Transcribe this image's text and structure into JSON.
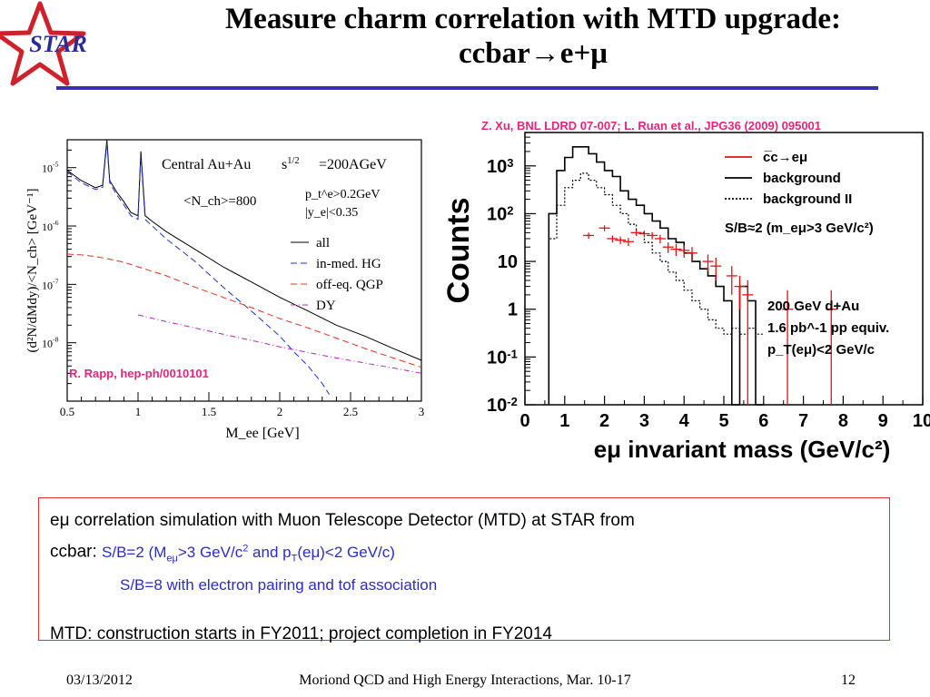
{
  "slide": {
    "title_line1": "Measure charm correlation with MTD upgrade:",
    "title_line2": "ccbar→e+μ",
    "logo_text": "STAR",
    "colors": {
      "title_rule": "#3333a8",
      "logo_star": "#d0202a",
      "logo_text": "#2a2a9a",
      "citation": "#e8247c",
      "box_border": "#e03030",
      "blue_text": "#2b2bd0"
    }
  },
  "body": {
    "line1": "eμ correlation simulation with Muon Telescope Detector (MTD) at STAR from",
    "line2_prefix": "ccbar:",
    "line2_blue_a": "S/B=2 (M",
    "line2_blue_sub_a": "eμ",
    "line2_blue_b": ">3 GeV/c",
    "line2_blue_sup": "2",
    "line2_blue_c": " and p",
    "line2_blue_sub_b": "T",
    "line2_blue_d": "(eμ)<2 GeV/c)",
    "line3": "S/B=8 with electron pairing and tof association",
    "line4": "MTD: construction starts in FY2011; project completion in FY2014"
  },
  "footer": {
    "date": "03/13/2012",
    "center": "Moriond QCD and High Energy Interactions, Mar. 10-17",
    "page": "12"
  },
  "chart_data": [
    {
      "type": "line",
      "title": "Central Au+Au",
      "annotations": [
        "s^1/2=200AGeV",
        "<N_ch>=800",
        "p_t^e>0.2GeV",
        "|y_e|<0.35",
        "R. Rapp, hep-ph/0010101"
      ],
      "xlabel": "M_ee [GeV]",
      "ylabel": "(d²N/dMdy)/<N_ch> [GeV⁻¹]",
      "xlim": [
        0.5,
        3
      ],
      "ylim": [
        1e-09,
        3e-05
      ],
      "yscale": "log",
      "x_ticks": [
        "0.5",
        "1",
        "1.5",
        "2",
        "2.5",
        "3"
      ],
      "y_ticks": [
        "10^-5",
        "10^-6",
        "10^-7",
        "10^-8"
      ],
      "legend_position": "right",
      "series": [
        {
          "name": "all",
          "color": "#000000",
          "style": "solid",
          "x": [
            0.5,
            0.6,
            0.7,
            0.75,
            0.78,
            0.8,
            0.85,
            0.9,
            0.95,
            1.0,
            1.02,
            1.05,
            1.1,
            1.2,
            1.4,
            1.6,
            1.8,
            2.0,
            2.2,
            2.4,
            2.6,
            2.8,
            3.0
          ],
          "y": [
            9e-06,
            6e-06,
            4.5e-06,
            5e-06,
            3e-05,
            6e-06,
            3.8e-06,
            2.6e-06,
            1.7e-06,
            1.5e-06,
            1.9e-05,
            1.5e-06,
            1.2e-06,
            8e-07,
            4e-07,
            2e-07,
            1.1e-07,
            6e-08,
            3.5e-08,
            2e-08,
            1.3e-08,
            8e-09,
            5e-09
          ]
        },
        {
          "name": "in-med. HG",
          "color": "#2030d0",
          "style": "dashed",
          "x": [
            0.5,
            0.6,
            0.7,
            0.75,
            0.78,
            0.8,
            0.85,
            0.9,
            0.95,
            1.0,
            1.02,
            1.05,
            1.1,
            1.2,
            1.4,
            1.6,
            1.8,
            2.0,
            2.1,
            2.2,
            2.3,
            2.35
          ],
          "y": [
            8.5e-06,
            5.5e-06,
            4.2e-06,
            4.6e-06,
            2.6e-05,
            5.5e-06,
            3.4e-06,
            2.3e-06,
            1.5e-06,
            1.3e-06,
            1.6e-05,
            1.3e-06,
            1e-06,
            6e-07,
            2.5e-07,
            9e-08,
            3.5e-08,
            1.3e-08,
            7e-09,
            4e-09,
            2e-09,
            1.3e-09
          ]
        },
        {
          "name": "off-eq. QGP",
          "color": "#e83020",
          "style": "dashed",
          "x": [
            0.5,
            0.6,
            0.7,
            0.8,
            0.9,
            1.0,
            1.2,
            1.4,
            1.6,
            1.8,
            2.0,
            2.2,
            2.4,
            2.6,
            2.8,
            3.0
          ],
          "y": [
            3.3e-07,
            3.2e-07,
            3e-07,
            2.7e-07,
            2.4e-07,
            2e-07,
            1.4e-07,
            9e-08,
            6e-08,
            4e-08,
            2.6e-08,
            1.8e-08,
            1.2e-08,
            8e-09,
            5.5e-09,
            3.8e-09
          ]
        },
        {
          "name": "DY",
          "color": "#c020c0",
          "style": "dashdot",
          "x": [
            1.0,
            1.2,
            1.4,
            1.6,
            1.8,
            2.0,
            2.2,
            2.4,
            2.6,
            2.8,
            3.0
          ],
          "y": [
            3e-08,
            2.3e-08,
            1.8e-08,
            1.4e-08,
            1.1e-08,
            8.5e-09,
            6.8e-09,
            5.5e-09,
            4.5e-09,
            3.7e-09,
            3e-09
          ]
        }
      ]
    },
    {
      "type": "line",
      "title": "",
      "citation": "Z. Xu, BNL LDRD 07-007; L. Ruan et al., JPG36 (2009) 095001",
      "xlabel": "eμ invariant mass (GeV/c²)",
      "ylabel": "Counts",
      "xlim": [
        0,
        10
      ],
      "ylim": [
        0.01,
        5000
      ],
      "yscale": "log",
      "x_ticks": [
        "0",
        "1",
        "2",
        "3",
        "4",
        "5",
        "6",
        "7",
        "8",
        "9",
        "10"
      ],
      "y_ticks": [
        "10^3",
        "10^2",
        "10",
        "1",
        "10^-1",
        "10^-2"
      ],
      "legend_position": "top-right",
      "annotations": [
        "S/B≈2 (m_eμ>3 GeV/c²)",
        "200 GeV d+Au",
        "1.6 pb^-1 pp equiv.",
        "p_T(eμ)<2 GeV/c"
      ],
      "histograms": [
        {
          "name": "background",
          "color": "#000000",
          "style": "solid",
          "bin_edges": [
            0.6,
            0.8,
            1.0,
            1.2,
            1.4,
            1.6,
            1.8,
            2.0,
            2.2,
            2.4,
            2.6,
            2.8,
            3.0,
            3.2,
            3.4,
            3.6,
            3.8,
            4.0,
            4.2,
            4.4,
            4.6,
            4.8,
            5.0,
            5.2,
            5.4,
            5.6,
            5.8,
            6.0
          ],
          "counts": [
            100,
            800,
            1500,
            2500,
            2500,
            1800,
            1200,
            800,
            600,
            300,
            200,
            150,
            100,
            70,
            50,
            30,
            25,
            15,
            10,
            7,
            5,
            3,
            1.5,
            0.01,
            3,
            1.5,
            0.01
          ]
        },
        {
          "name": "background II",
          "color": "#000000",
          "style": "dotted",
          "bin_edges": [
            0.6,
            0.8,
            1.0,
            1.2,
            1.4,
            1.6,
            1.8,
            2.0,
            2.2,
            2.4,
            2.6,
            2.8,
            3.0,
            3.2,
            3.4,
            3.6,
            3.8,
            4.0,
            4.2,
            4.4,
            4.6,
            4.8,
            5.0,
            5.2,
            5.4,
            5.6,
            5.8,
            6.0
          ],
          "counts": [
            30,
            150,
            350,
            500,
            700,
            500,
            350,
            250,
            150,
            100,
            60,
            40,
            25,
            15,
            10,
            6,
            4,
            2.5,
            1.5,
            1,
            0.6,
            0.4,
            0.3,
            0.4,
            0.3,
            0.4,
            0.3
          ]
        }
      ],
      "series": [
        {
          "name": "c̅c→eμ",
          "color": "#e81010",
          "style": "points-with-errors",
          "x": [
            1.6,
            2.0,
            2.2,
            2.4,
            2.6,
            2.8,
            3.0,
            3.2,
            3.4,
            3.6,
            3.8,
            4.0,
            4.2,
            4.6,
            4.8,
            5.2,
            5.4,
            5.6,
            6.6,
            7.7
          ],
          "y": [
            35,
            50,
            30,
            28,
            26,
            40,
            38,
            35,
            30,
            20,
            18,
            17,
            15,
            10,
            8,
            5,
            3,
            2,
            1,
            1
          ],
          "yerr": [
            5,
            7,
            5,
            5,
            5,
            6,
            6,
            6,
            6,
            5,
            5,
            5,
            5,
            4,
            4,
            3,
            2,
            2,
            1.5,
            1.5
          ]
        }
      ]
    }
  ]
}
